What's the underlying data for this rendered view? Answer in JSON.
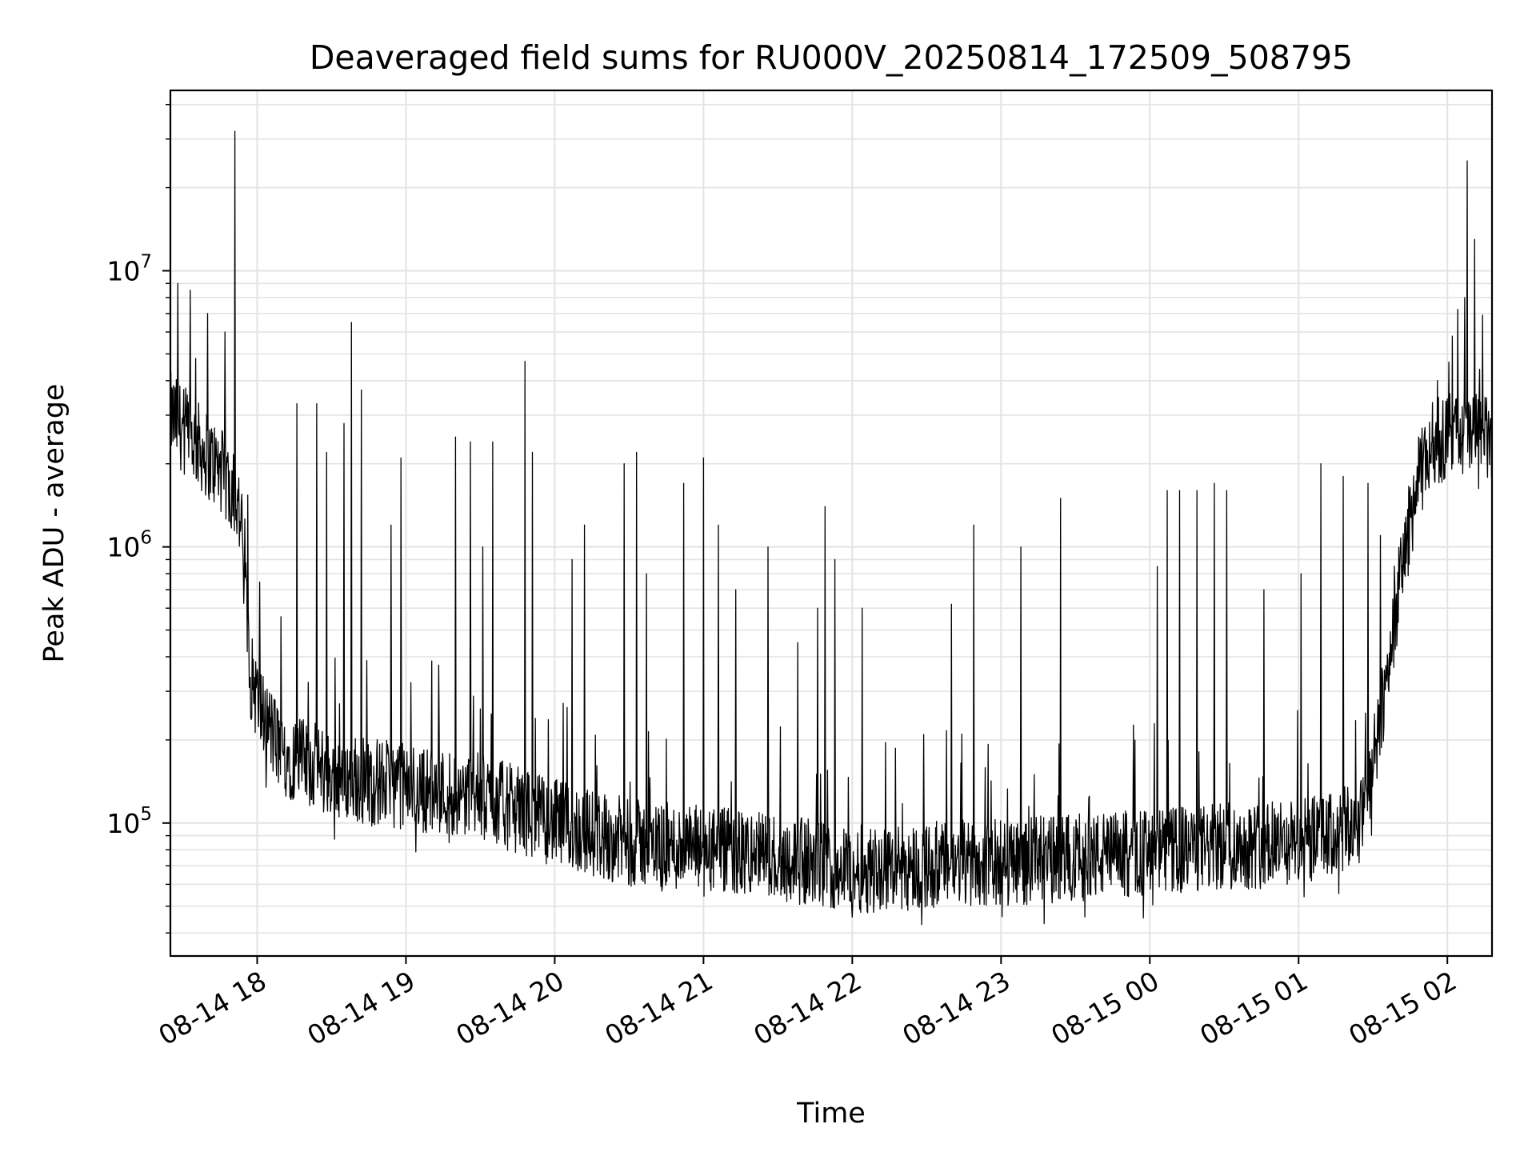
{
  "chart_data": {
    "type": "line",
    "title": "Deaveraged field sums for RU000V_20250814_172509_508795",
    "xlabel": "Time",
    "ylabel": "Peak ADU - average",
    "yscale": "log",
    "xlim": [
      "08-14 17:25",
      "08-15 02:18"
    ],
    "ylim": [
      33000,
      45000000
    ],
    "grid": true,
    "x_ticks": [
      "08-14 18",
      "08-14 19",
      "08-14 20",
      "08-14 21",
      "08-14 22",
      "08-14 23",
      "08-15 00",
      "08-15 01",
      "08-15 02"
    ],
    "y_ticks": [
      {
        "value": 100000,
        "base": "10",
        "exp": "5"
      },
      {
        "value": 1000000,
        "base": "10",
        "exp": "6"
      },
      {
        "value": 10000000,
        "base": "10",
        "exp": "7"
      }
    ],
    "series": [
      {
        "color": "#000000",
        "baseline": [
          [
            "08-14 17:25",
            3000000
          ],
          [
            "08-14 17:35",
            2400000
          ],
          [
            "08-14 17:45",
            1900000
          ],
          [
            "08-14 17:52",
            1500000
          ],
          [
            "08-14 17:55",
            900000
          ],
          [
            "08-14 17:57",
            350000
          ],
          [
            "08-14 18:02",
            250000
          ],
          [
            "08-14 18:10",
            180000
          ],
          [
            "08-14 18:30",
            150000
          ],
          [
            "08-14 19:00",
            135000
          ],
          [
            "08-14 19:30",
            125000
          ],
          [
            "08-14 20:00",
            100000
          ],
          [
            "08-14 20:30",
            85000
          ],
          [
            "08-14 21:00",
            80000
          ],
          [
            "08-14 21:30",
            75000
          ],
          [
            "08-14 22:00",
            68000
          ],
          [
            "08-14 22:30",
            70000
          ],
          [
            "08-14 23:00",
            72000
          ],
          [
            "08-14 23:30",
            75000
          ],
          [
            "08-15 00:00",
            78000
          ],
          [
            "08-15 00:30",
            82000
          ],
          [
            "08-15 01:00",
            85000
          ],
          [
            "08-15 01:15",
            90000
          ],
          [
            "08-15 01:25",
            100000
          ],
          [
            "08-15 01:32",
            200000
          ],
          [
            "08-15 01:38",
            500000
          ],
          [
            "08-15 01:43",
            1000000
          ],
          [
            "08-15 01:48",
            1700000
          ],
          [
            "08-15 01:54",
            2400000
          ],
          [
            "08-15 02:05",
            2600000
          ],
          [
            "08-15 02:18",
            2400000
          ]
        ],
        "spikes": [
          [
            "08-14 17:51",
            32000000
          ],
          [
            "08-14 17:40",
            7000000
          ],
          [
            "08-14 17:28",
            9000000
          ],
          [
            "08-14 17:33",
            8500000
          ],
          [
            "08-14 17:47",
            6000000
          ],
          [
            "08-14 18:16",
            3300000
          ],
          [
            "08-14 18:24",
            3300000
          ],
          [
            "08-14 18:28",
            2200000
          ],
          [
            "08-14 18:35",
            2800000
          ],
          [
            "08-14 18:38",
            6500000
          ],
          [
            "08-14 18:42",
            3700000
          ],
          [
            "08-14 18:54",
            1200000
          ],
          [
            "08-14 18:58",
            2100000
          ],
          [
            "08-14 19:20",
            2500000
          ],
          [
            "08-14 19:26",
            2400000
          ],
          [
            "08-14 19:31",
            1000000
          ],
          [
            "08-14 19:35",
            2400000
          ],
          [
            "08-14 19:48",
            4700000
          ],
          [
            "08-14 19:51",
            2200000
          ],
          [
            "08-14 20:07",
            900000
          ],
          [
            "08-14 20:12",
            1200000
          ],
          [
            "08-14 20:28",
            2000000
          ],
          [
            "08-14 20:33",
            2200000
          ],
          [
            "08-14 20:37",
            800000
          ],
          [
            "08-14 20:52",
            1700000
          ],
          [
            "08-14 21:00",
            2100000
          ],
          [
            "08-14 21:06",
            1200000
          ],
          [
            "08-14 21:13",
            700000
          ],
          [
            "08-14 21:26",
            1000000
          ],
          [
            "08-14 21:38",
            450000
          ],
          [
            "08-14 21:46",
            600000
          ],
          [
            "08-14 21:49",
            1400000
          ],
          [
            "08-14 21:53",
            900000
          ],
          [
            "08-14 22:04",
            600000
          ],
          [
            "08-14 22:40",
            620000
          ],
          [
            "08-14 22:49",
            1200000
          ],
          [
            "08-14 23:08",
            1000000
          ],
          [
            "08-14 23:24",
            1500000
          ],
          [
            "08-15 00:03",
            850000
          ],
          [
            "08-15 00:07",
            1600000
          ],
          [
            "08-15 00:12",
            1600000
          ],
          [
            "08-15 00:19",
            1600000
          ],
          [
            "08-15 00:26",
            1700000
          ],
          [
            "08-15 00:31",
            1600000
          ],
          [
            "08-15 00:46",
            700000
          ],
          [
            "08-15 01:01",
            800000
          ],
          [
            "08-15 01:09",
            2000000
          ],
          [
            "08-15 01:18",
            1800000
          ],
          [
            "08-15 01:28",
            1700000
          ],
          [
            "08-15 01:33",
            1100000
          ],
          [
            "08-15 01:56",
            4000000
          ],
          [
            "08-15 02:02",
            5800000
          ],
          [
            "08-15 02:07",
            8000000
          ],
          [
            "08-15 02:13",
            4400000
          ],
          [
            "08-15 02:08",
            25000000
          ],
          [
            "08-15 02:11",
            13000000
          ]
        ]
      }
    ]
  }
}
